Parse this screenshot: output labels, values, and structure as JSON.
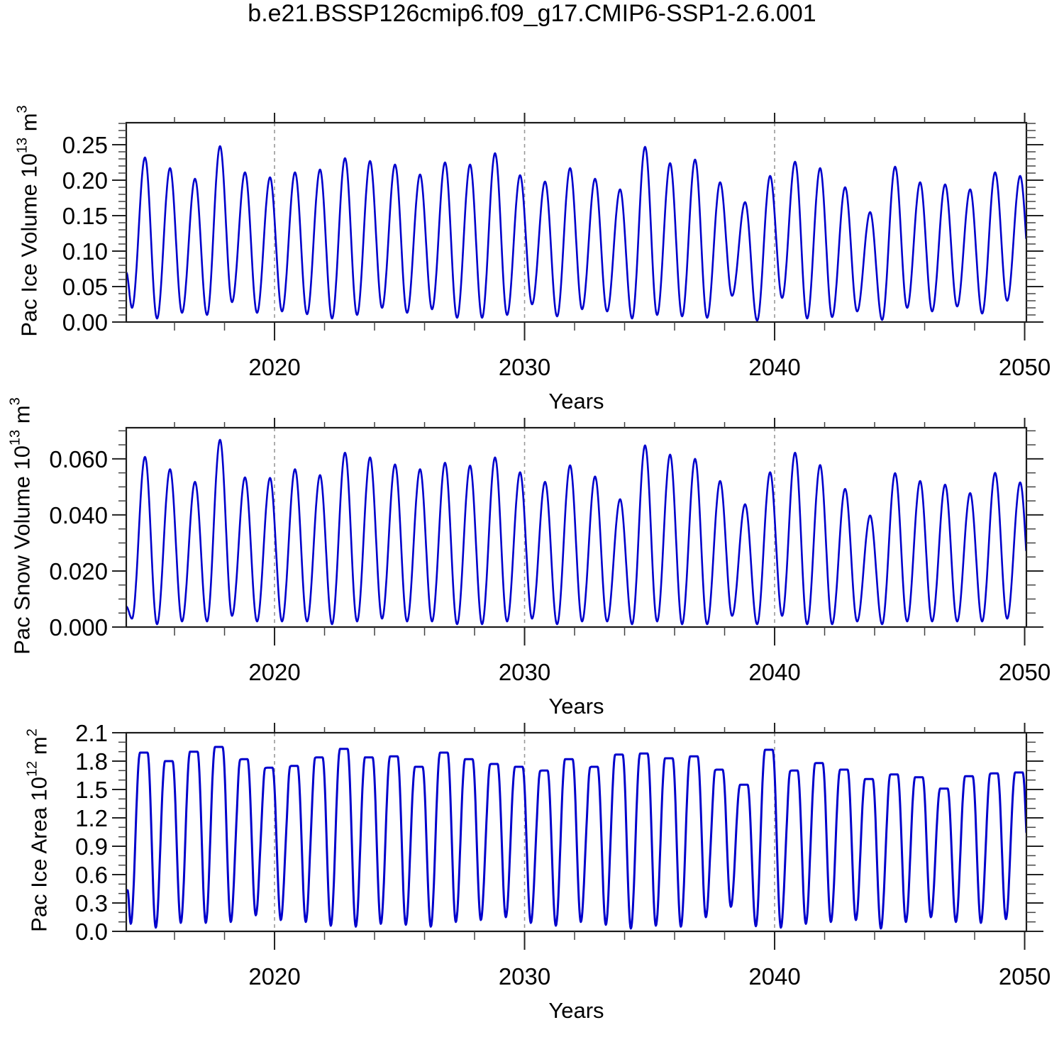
{
  "title": "b.e21.BSSP126cmip6.f09_g17.CMIP6-SSP1-2.6.001",
  "xlabel": "Years",
  "line_color": "#0000CC",
  "grid_color": "#999999",
  "chart_data": [
    {
      "id": "pac-ice-volume",
      "type": "line",
      "ylabel": "Pac Ice Volume 10^13 m^3",
      "ylabel_parts": {
        "base": "Pac Ice Volume 10",
        "base_exp": "13",
        "unit": " m",
        "unit_exp": "3"
      },
      "xlabel": "Years",
      "x_range": [
        2014.07,
        2050.07
      ],
      "x_major_ticks": [
        2020,
        2030,
        2040,
        2050
      ],
      "x_minor_step": 2,
      "grid_years": [
        2020,
        2030,
        2040
      ],
      "ylim": [
        0,
        0.281
      ],
      "y_tick_values": [
        0.0,
        0.05,
        0.1,
        0.15,
        0.2,
        0.25
      ],
      "y_tick_labels": [
        "0.00",
        "0.05",
        "0.10",
        "0.15",
        "0.20",
        "0.25"
      ],
      "y_minor_step": 0.01,
      "line_width": 2.6,
      "seasonal": {
        "shape": "sine",
        "first_year": 2014,
        "trough_phase": 0.3,
        "peak_phase": 0.82,
        "start_point": [
          2014.07,
          0.07
        ],
        "peaks": [
          0.232,
          0.217,
          0.202,
          0.248,
          0.211,
          0.204,
          0.211,
          0.215,
          0.231,
          0.227,
          0.222,
          0.208,
          0.225,
          0.222,
          0.238,
          0.207,
          0.198,
          0.217,
          0.202,
          0.187,
          0.247,
          0.224,
          0.229,
          0.197,
          0.169,
          0.206,
          0.226,
          0.217,
          0.19,
          0.155,
          0.219,
          0.197,
          0.194,
          0.187,
          0.211,
          0.206
        ],
        "troughs": [
          0.02,
          0.005,
          0.013,
          0.01,
          0.028,
          0.013,
          0.015,
          0.011,
          0.005,
          0.01,
          0.02,
          0.013,
          0.018,
          0.006,
          0.006,
          0.01,
          0.025,
          0.008,
          0.018,
          0.015,
          0.005,
          0.01,
          0.008,
          0.006,
          0.037,
          0.002,
          0.034,
          0.005,
          0.007,
          0.015,
          0.003,
          0.02,
          0.015,
          0.022,
          0.012,
          0.03
        ],
        "notches": {}
      }
    },
    {
      "id": "pac-snow-volume",
      "type": "line",
      "ylabel": "Pac Snow Volume 10^13 m^3",
      "ylabel_parts": {
        "base": "Pac Snow Volume 10",
        "base_exp": "13",
        "unit": " m",
        "unit_exp": "3"
      },
      "xlabel": "Years",
      "x_range": [
        2014.07,
        2050.07
      ],
      "x_major_ticks": [
        2020,
        2030,
        2040,
        2050
      ],
      "x_minor_step": 2,
      "grid_years": [
        2020,
        2030,
        2040
      ],
      "ylim": [
        0,
        0.0711
      ],
      "y_tick_values": [
        0.0,
        0.02,
        0.04,
        0.06
      ],
      "y_tick_labels": [
        "0.000",
        "0.020",
        "0.040",
        "0.060"
      ],
      "y_minor_step": 0.005,
      "line_width": 2.6,
      "seasonal": {
        "shape": "sine",
        "first_year": 2014,
        "trough_phase": 0.3,
        "peak_phase": 0.82,
        "start_point": [
          2014.07,
          0.0073
        ],
        "peaks": [
          0.0607,
          0.0563,
          0.0518,
          0.0668,
          0.0534,
          0.0532,
          0.0563,
          0.0542,
          0.0622,
          0.0605,
          0.058,
          0.0563,
          0.0586,
          0.0576,
          0.0605,
          0.0552,
          0.0518,
          0.0577,
          0.0537,
          0.0456,
          0.0648,
          0.0615,
          0.06,
          0.0521,
          0.0438,
          0.0552,
          0.0622,
          0.0578,
          0.0493,
          0.0398,
          0.0549,
          0.0521,
          0.0508,
          0.0478,
          0.055,
          0.0516
        ],
        "troughs": [
          0.003,
          0.001,
          0.002,
          0.002,
          0.004,
          0.002,
          0.002,
          0.002,
          0.001,
          0.002,
          0.003,
          0.002,
          0.002,
          0.001,
          0.001,
          0.002,
          0.003,
          0.001,
          0.002,
          0.002,
          0.001,
          0.002,
          0.001,
          0.001,
          0.004,
          0.001,
          0.004,
          0.001,
          0.001,
          0.002,
          0.001,
          0.002,
          0.002,
          0.002,
          0.002,
          0.003
        ],
        "notches": {}
      }
    },
    {
      "id": "pac-ice-area",
      "type": "line",
      "ylabel": "Pac Ice Area 10^12 m^2",
      "ylabel_parts": {
        "base": "Pac Ice Area 10",
        "base_exp": "12",
        "unit": " m",
        "unit_exp": "2"
      },
      "xlabel": "Years",
      "x_range": [
        2014.07,
        2050.07
      ],
      "x_major_ticks": [
        2020,
        2030,
        2040,
        2050
      ],
      "x_minor_step": 2,
      "grid_years": [
        2020,
        2030,
        2040
      ],
      "ylim": [
        0,
        2.1
      ],
      "y_tick_values": [
        0.0,
        0.3,
        0.6,
        0.9,
        1.2,
        1.5,
        1.8,
        2.1
      ],
      "y_tick_labels": [
        "0.0",
        "0.3",
        "0.6",
        "0.9",
        "1.2",
        "1.5",
        "1.8",
        "2.1"
      ],
      "y_minor_step": 0.1,
      "line_width": 3.0,
      "seasonal": {
        "shape": "plateau",
        "first_year": 2014,
        "trough_phase": 0.25,
        "peak_phase": 0.78,
        "start_point": [
          2014.07,
          0.435
        ],
        "peaks": [
          1.89,
          1.8,
          1.9,
          1.95,
          1.82,
          1.73,
          1.75,
          1.84,
          1.93,
          1.84,
          1.85,
          1.74,
          1.89,
          1.82,
          1.77,
          1.74,
          1.7,
          1.82,
          1.74,
          1.87,
          1.88,
          1.83,
          1.85,
          1.71,
          1.55,
          1.92,
          1.7,
          1.78,
          1.71,
          1.61,
          1.66,
          1.63,
          1.51,
          1.64,
          1.67,
          1.68
        ],
        "troughs": [
          0.08,
          0.04,
          0.09,
          0.09,
          0.1,
          0.17,
          0.12,
          0.1,
          0.06,
          0.05,
          0.08,
          0.07,
          0.05,
          0.1,
          0.12,
          0.15,
          0.09,
          0.06,
          0.1,
          0.07,
          0.03,
          0.06,
          0.05,
          0.15,
          0.26,
          0.055,
          0.04,
          0.08,
          0.1,
          0.12,
          0.03,
          0.1,
          0.15,
          0.1,
          0.09,
          0.13
        ],
        "notches": {
          "2018": 0.1,
          "2019": 0.09,
          "2020": 0.12,
          "2021": 0.1,
          "2028": 0.07,
          "2030": 0.08,
          "2032": 0.1,
          "2033": 0.06,
          "2037": 0.1,
          "2040": 0.09,
          "2041": 0.05,
          "2044": 0.05,
          "2048": 0.05
        }
      }
    }
  ]
}
